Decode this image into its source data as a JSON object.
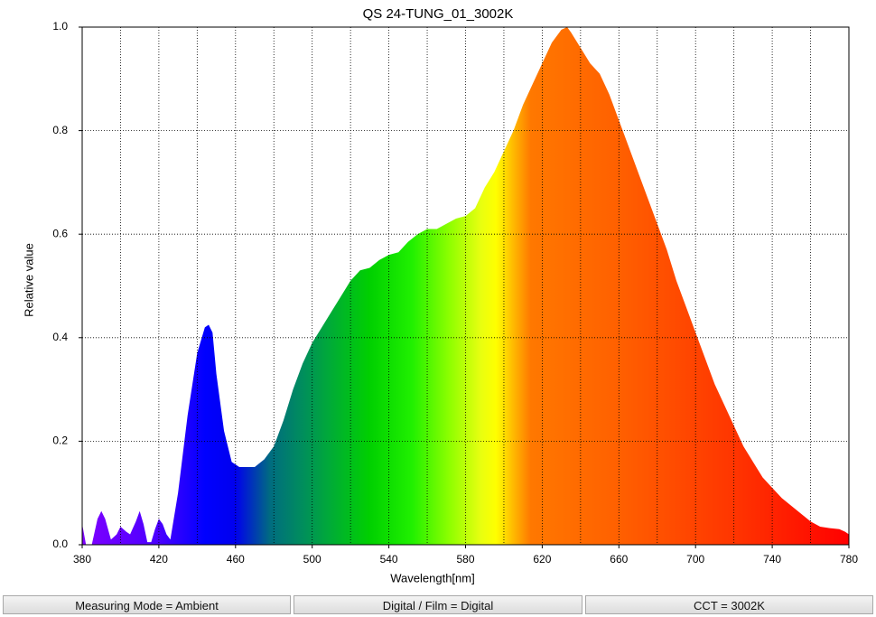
{
  "chart_data": {
    "type": "area",
    "title": "QS 24-TUNG_01_3002K",
    "xlabel": "Wavelength[nm]",
    "ylabel": "Relative value",
    "x": [
      380,
      382,
      385,
      388,
      390,
      392,
      395,
      398,
      400,
      403,
      405,
      408,
      410,
      412,
      414,
      416,
      418,
      420,
      422,
      424,
      426,
      430,
      435,
      440,
      444,
      446,
      448,
      450,
      454,
      458,
      462,
      466,
      470,
      475,
      480,
      485,
      490,
      495,
      500,
      505,
      510,
      515,
      520,
      525,
      530,
      535,
      540,
      545,
      550,
      555,
      560,
      565,
      570,
      575,
      580,
      585,
      590,
      595,
      600,
      605,
      610,
      615,
      620,
      625,
      630,
      633,
      635,
      640,
      645,
      650,
      655,
      660,
      665,
      670,
      675,
      680,
      685,
      690,
      695,
      700,
      705,
      710,
      715,
      720,
      725,
      730,
      735,
      740,
      745,
      750,
      755,
      760,
      765,
      770,
      775,
      778,
      780
    ],
    "values": [
      0.04,
      0.0,
      0.0,
      0.05,
      0.065,
      0.05,
      0.01,
      0.02,
      0.035,
      0.025,
      0.02,
      0.045,
      0.065,
      0.04,
      0.005,
      0.005,
      0.03,
      0.05,
      0.04,
      0.02,
      0.01,
      0.1,
      0.25,
      0.37,
      0.42,
      0.425,
      0.41,
      0.33,
      0.22,
      0.16,
      0.15,
      0.15,
      0.15,
      0.165,
      0.19,
      0.24,
      0.3,
      0.35,
      0.39,
      0.42,
      0.45,
      0.48,
      0.51,
      0.53,
      0.535,
      0.55,
      0.56,
      0.565,
      0.585,
      0.6,
      0.61,
      0.61,
      0.62,
      0.63,
      0.635,
      0.65,
      0.69,
      0.72,
      0.76,
      0.8,
      0.85,
      0.89,
      0.93,
      0.97,
      0.995,
      1.0,
      0.99,
      0.96,
      0.93,
      0.91,
      0.87,
      0.82,
      0.77,
      0.72,
      0.67,
      0.62,
      0.57,
      0.51,
      0.46,
      0.41,
      0.36,
      0.31,
      0.27,
      0.23,
      0.19,
      0.16,
      0.13,
      0.11,
      0.09,
      0.075,
      0.06,
      0.045,
      0.035,
      0.032,
      0.03,
      0.025,
      0.02
    ],
    "xlim": [
      380,
      780
    ],
    "ylim": [
      0,
      1
    ],
    "xticks": [
      380,
      420,
      460,
      500,
      540,
      580,
      620,
      660,
      700,
      740,
      780
    ],
    "xgrid_minor": [
      400,
      440,
      480,
      520,
      560,
      600,
      640,
      680,
      720,
      760
    ],
    "yticks": [
      {
        "value": 0,
        "label": "0.0"
      },
      0.2,
      0.4,
      0.6,
      0.8,
      {
        "value": 1,
        "label": "1.0"
      }
    ],
    "grid": true
  },
  "footer": [
    "Measuring Mode = Ambient",
    "Digital / Film = Digital",
    "CCT = 3002K"
  ]
}
